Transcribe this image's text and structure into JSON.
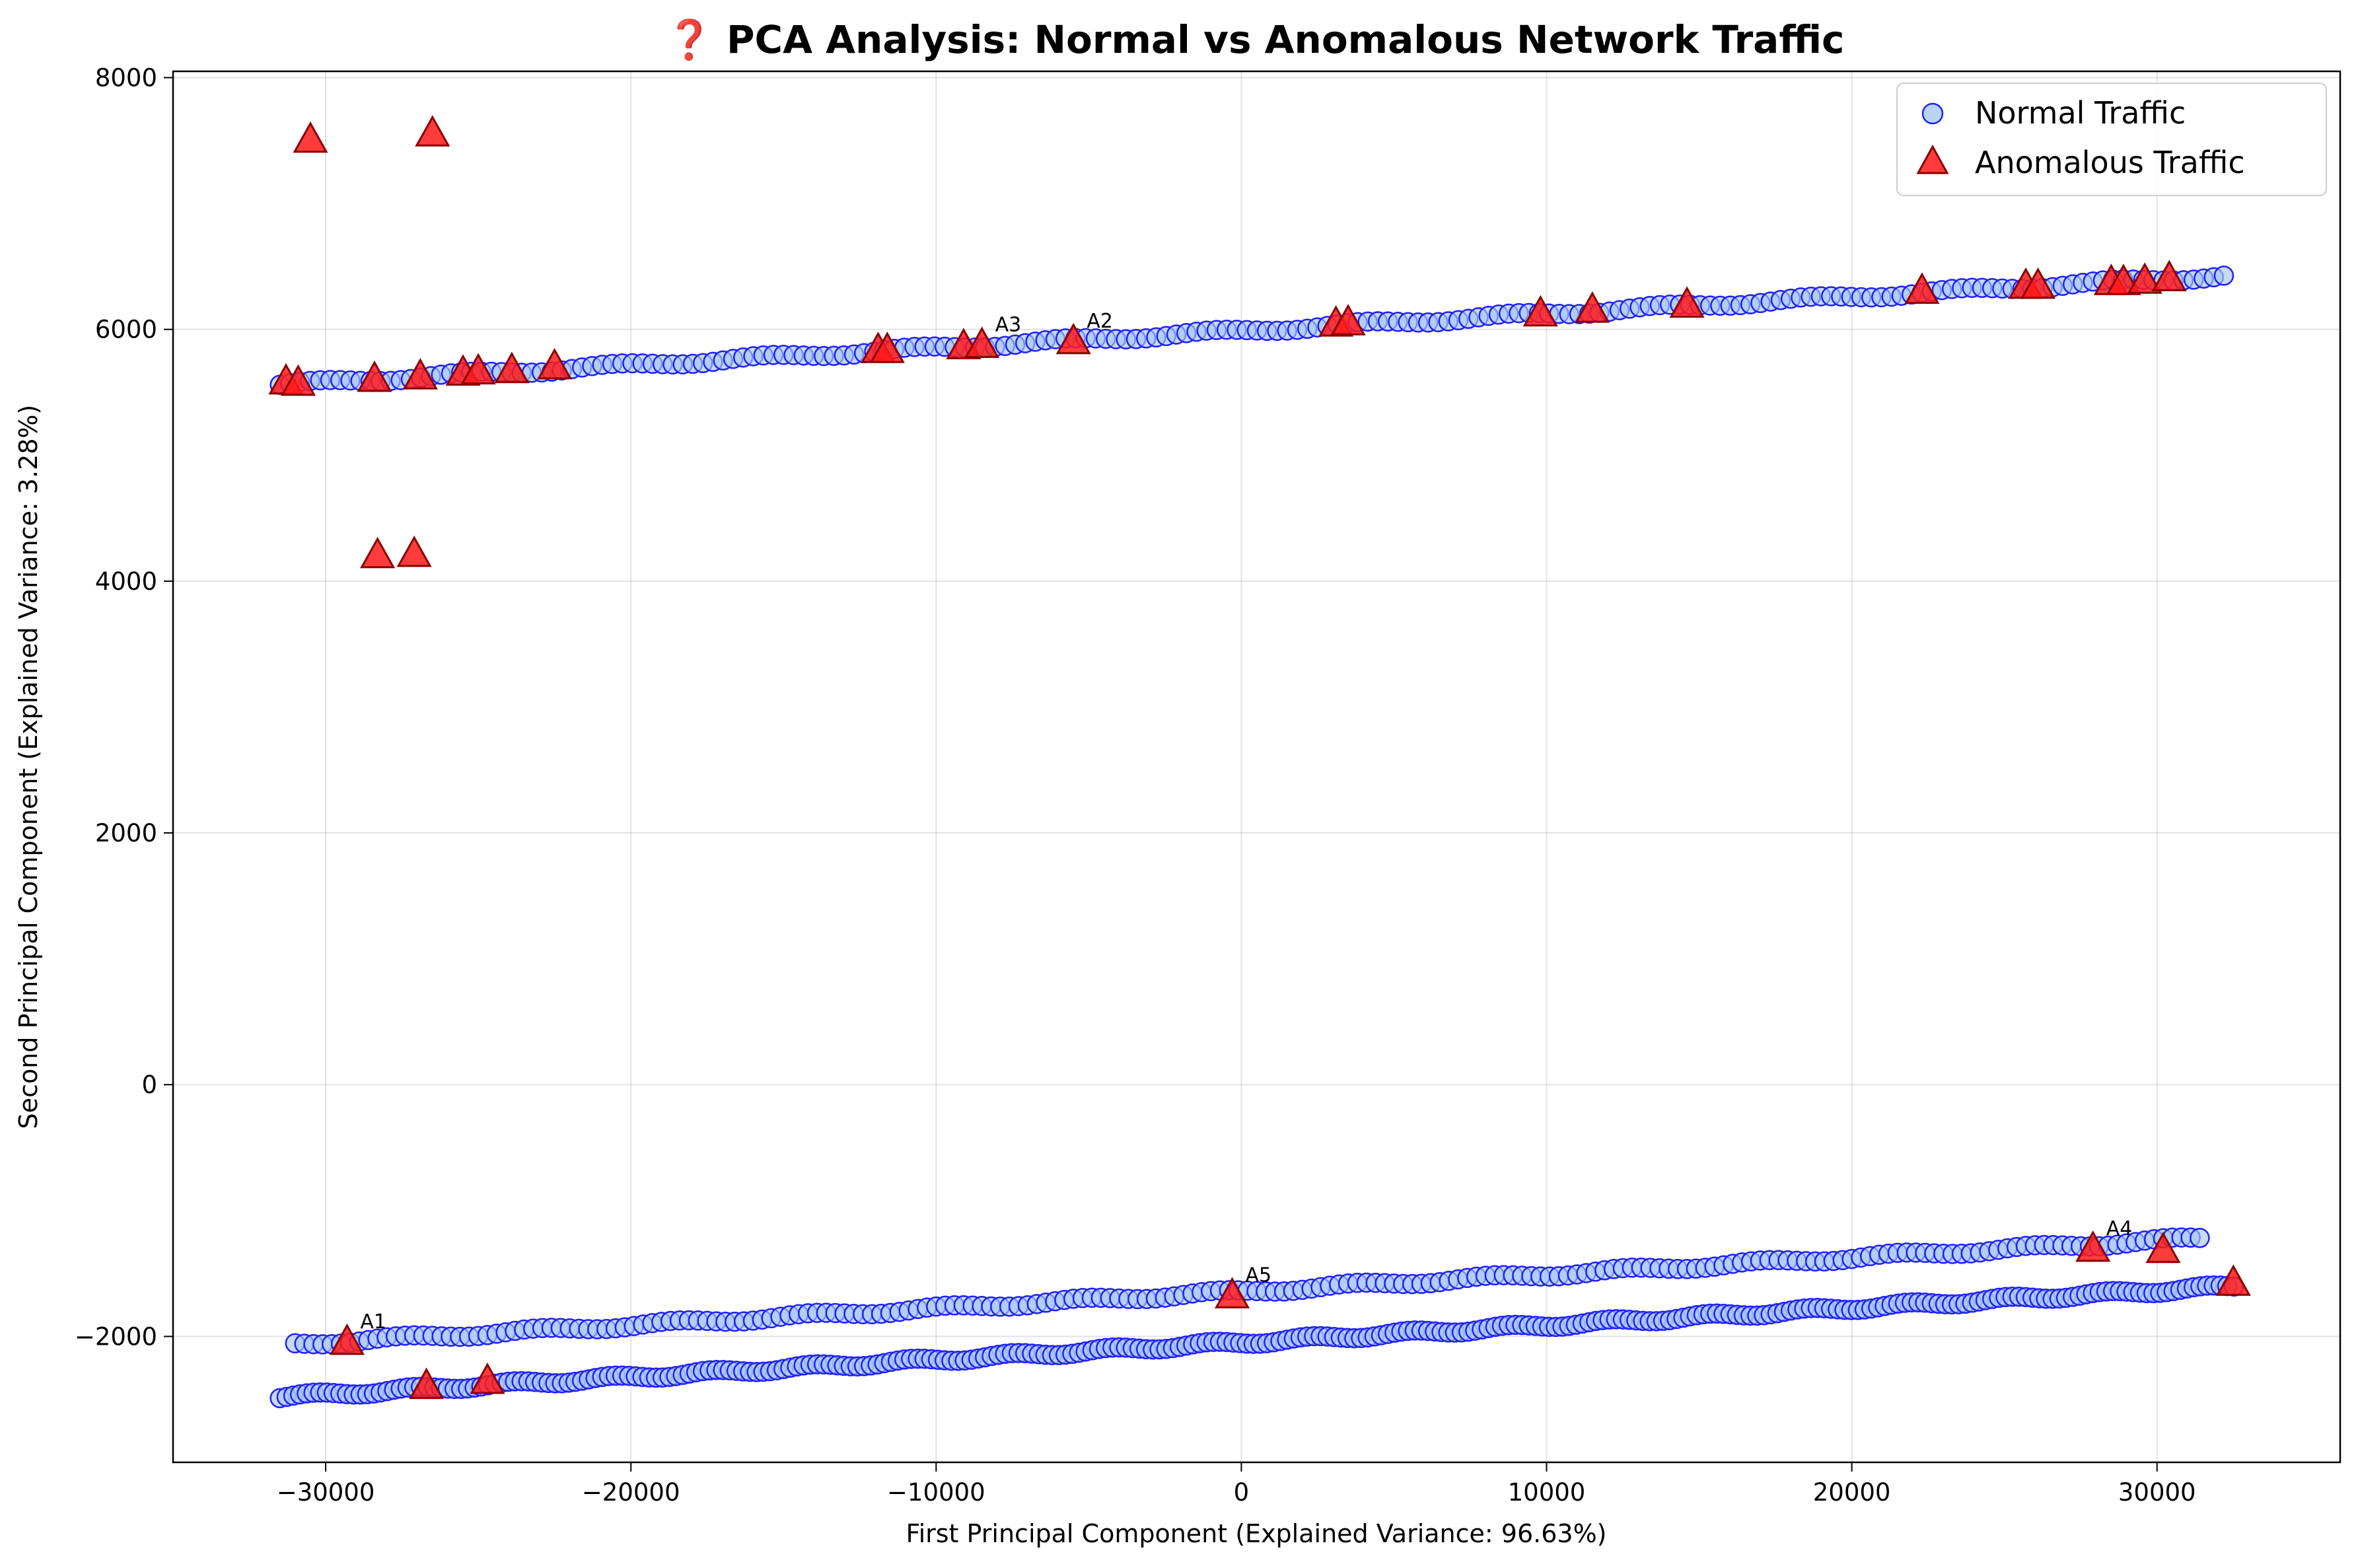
{
  "chart_data": {
    "type": "scatter",
    "title": "❓ PCA Analysis: Normal vs Anomalous Network Traffic",
    "xlabel": "First Principal Component (Explained Variance: 96.63%)",
    "ylabel": "Second Principal Component (Explained Variance: 3.28%)",
    "xlim": [
      -35000,
      36000
    ],
    "ylim": [
      -3000,
      8050
    ],
    "xticks": [
      -30000,
      -20000,
      -10000,
      0,
      10000,
      20000,
      30000
    ],
    "yticks": [
      -2000,
      0,
      2000,
      4000,
      6000,
      8000
    ],
    "xtick_labels": [
      "−30000",
      "−20000",
      "−10000",
      "0",
      "10000",
      "20000",
      "30000"
    ],
    "ytick_labels": [
      "−2000",
      "0",
      "2000",
      "4000",
      "6000",
      "8000"
    ],
    "grid": true,
    "legend_position": "top-right",
    "colors": {
      "normal_fill": "#a8c8f0",
      "normal_edge": "#1f1fff",
      "anomaly_fill": "#ff1a1a",
      "anomaly_edge": "#8b0000"
    },
    "series": [
      {
        "name": "Normal Traffic",
        "marker": "circle",
        "bands": [
          {
            "x_start": -31500,
            "y_start": 5560,
            "x_end": 32500,
            "y_end": 6430,
            "step": 330
          },
          {
            "x_start": -31000,
            "y_start": -2060,
            "x_end": 31500,
            "y_end": -1220,
            "step": 300
          },
          {
            "x_start": -31500,
            "y_start": -2480,
            "x_end": 32700,
            "y_end": -1600,
            "step": 220
          }
        ]
      },
      {
        "name": "Anomalous Traffic",
        "marker": "triangle",
        "points": [
          [
            -30500,
            7500
          ],
          [
            -26500,
            7550
          ],
          [
            -28300,
            4200
          ],
          [
            -27100,
            4210
          ],
          [
            -31300,
            5580
          ],
          [
            -30900,
            5570
          ],
          [
            -28400,
            5600
          ],
          [
            -26900,
            5620
          ],
          [
            -25500,
            5650
          ],
          [
            -25000,
            5660
          ],
          [
            -23900,
            5670
          ],
          [
            -22500,
            5700
          ],
          [
            -11900,
            5830
          ],
          [
            -11600,
            5830
          ],
          [
            -9100,
            5860
          ],
          [
            -8500,
            5870
          ],
          [
            -5500,
            5900
          ],
          [
            3100,
            6040
          ],
          [
            3500,
            6050
          ],
          [
            9800,
            6120
          ],
          [
            11500,
            6150
          ],
          [
            14600,
            6190
          ],
          [
            22300,
            6300
          ],
          [
            25700,
            6340
          ],
          [
            26100,
            6340
          ],
          [
            28500,
            6370
          ],
          [
            28900,
            6370
          ],
          [
            29600,
            6380
          ],
          [
            30400,
            6400
          ],
          [
            -29300,
            -2050
          ],
          [
            -26700,
            -2400
          ],
          [
            -24700,
            -2360
          ],
          [
            -300,
            -1680
          ],
          [
            27900,
            -1310
          ],
          [
            30200,
            -1320
          ],
          [
            32500,
            -1580
          ]
        ]
      }
    ],
    "annotations": [
      {
        "text": "A1",
        "x": -29300,
        "y": -2050
      },
      {
        "text": "A2",
        "x": -5500,
        "y": 5900
      },
      {
        "text": "A3",
        "x": -8500,
        "y": 5870
      },
      {
        "text": "A4",
        "x": 27900,
        "y": -1310
      },
      {
        "text": "A5",
        "x": -300,
        "y": -1680
      }
    ]
  }
}
